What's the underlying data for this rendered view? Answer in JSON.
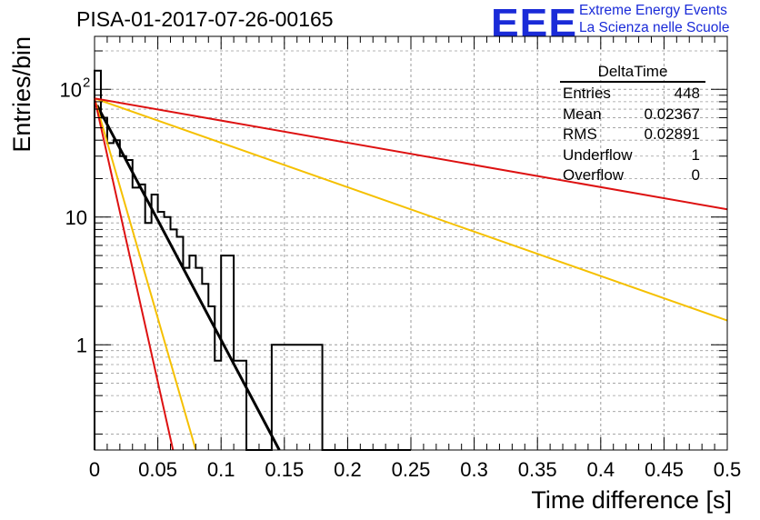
{
  "header": {
    "run_title": "PISA-01-2017-07-26-00165",
    "logo_letters": "EEE",
    "logo_line1": "Extreme Energy Events",
    "logo_line2": "La Scienza nelle Scuole"
  },
  "stats_box": {
    "title": "DeltaTime",
    "rows": [
      {
        "label": "Entries",
        "value": "448"
      },
      {
        "label": "Mean",
        "value": "0.02367"
      },
      {
        "label": "RMS",
        "value": "0.02891"
      },
      {
        "label": "Underflow",
        "value": "1"
      },
      {
        "label": "Overflow",
        "value": "0"
      }
    ]
  },
  "colors": {
    "histogram": "#000000",
    "fit": "#000000",
    "red": "#dd1111",
    "orange": "#f5c000",
    "grid": "#9a9a9a"
  },
  "chart_data": {
    "type": "line",
    "xlabel": "Time difference [s]",
    "ylabel": "Entries/bin",
    "xlim": [
      0,
      0.5
    ],
    "ylim": [
      0.15,
      260
    ],
    "ylog": true,
    "grid": true,
    "x_tick_labels": [
      "0",
      "0.05",
      "0.1",
      "0.15",
      "0.2",
      "0.25",
      "0.3",
      "0.35",
      "0.4",
      "0.45",
      "0.5"
    ],
    "y_tick_labels": [
      {
        "value": 1,
        "label": "1"
      },
      {
        "value": 10,
        "label": "10"
      },
      {
        "value": 100,
        "label": "10",
        "sup": "2"
      }
    ],
    "histogram": {
      "bin_width": 0.005,
      "counts": [
        140,
        60,
        38,
        40,
        30,
        28,
        17,
        18,
        9,
        15,
        11,
        10,
        8,
        7,
        4,
        5,
        4,
        3,
        2,
        0.75,
        5,
        5,
        0.75,
        0.75,
        0.1,
        0.1,
        0.1,
        0.1,
        1,
        1,
        1,
        1,
        1,
        1,
        1,
        1,
        0.1,
        0.1,
        0.1,
        0.1,
        0.1,
        0.1,
        0.1,
        0.1,
        0.1,
        0.1,
        0.1,
        0.1,
        0.1,
        0.1
      ]
    },
    "series": [
      {
        "color": "black",
        "x": [
          0.002,
          0.146
        ],
        "y": [
          75,
          0.15
        ]
      },
      {
        "color": "orange",
        "x": [
          0.0,
          0.5
        ],
        "y": [
          85,
          1.55
        ]
      },
      {
        "color": "orange",
        "x": [
          0.0,
          0.08
        ],
        "y": [
          85,
          0.15
        ]
      },
      {
        "color": "red",
        "x": [
          0.0,
          0.5
        ],
        "y": [
          85,
          11.5
        ]
      },
      {
        "color": "red",
        "x": [
          0.0,
          0.062
        ],
        "y": [
          85,
          0.15
        ]
      }
    ]
  }
}
